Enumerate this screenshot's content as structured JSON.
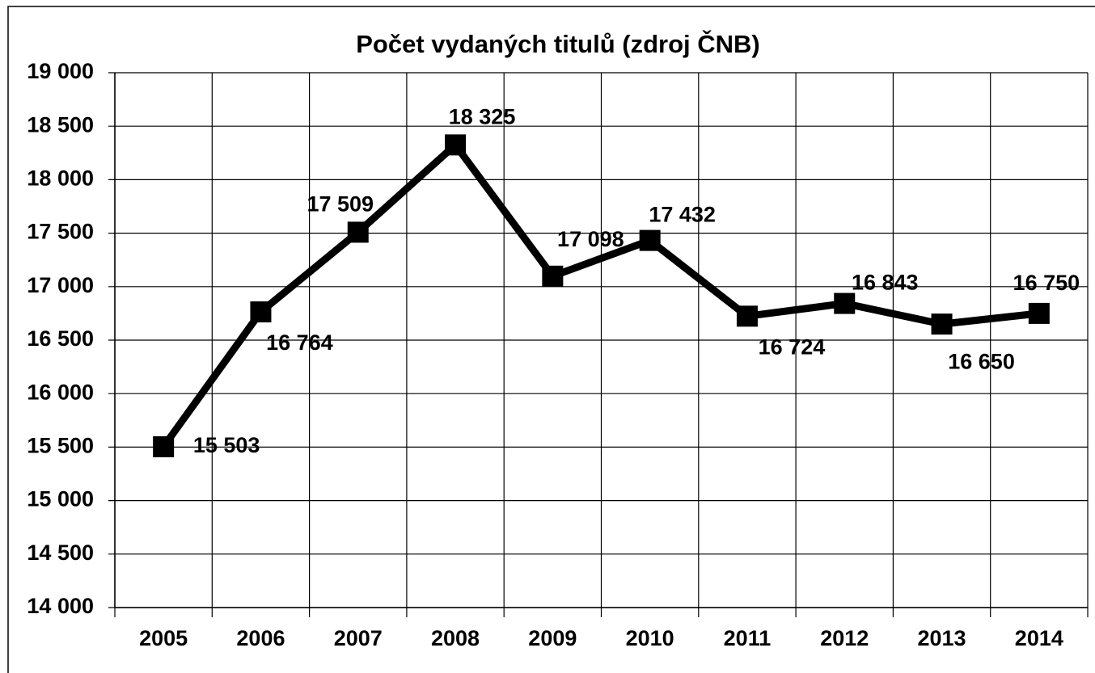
{
  "chart_data": {
    "type": "line",
    "title": "Počet vydaných titulů (zdroj ČNB)",
    "categories": [
      "2005",
      "2006",
      "2007",
      "2008",
      "2009",
      "2010",
      "2011",
      "2012",
      "2013",
      "2014"
    ],
    "values": [
      15503,
      16764,
      17509,
      18325,
      17098,
      17432,
      16724,
      16843,
      16650,
      16750
    ],
    "value_labels": [
      "15 503",
      "16 764",
      "17 509",
      "18 325",
      "17 098",
      "17 432",
      "16 724",
      "16 843",
      "16 650",
      "16 750"
    ],
    "color": "#000000",
    "ylim": [
      14000,
      19000
    ],
    "yticks": [
      {
        "value": 14000,
        "label": "14 000"
      },
      {
        "value": 14500,
        "label": "14 500"
      },
      {
        "value": 15000,
        "label": "15 000"
      },
      {
        "value": 15500,
        "label": "15 500"
      },
      {
        "value": 16000,
        "label": "16 000"
      },
      {
        "value": 16500,
        "label": "16 500"
      },
      {
        "value": 17000,
        "label": "17 000"
      },
      {
        "value": 17500,
        "label": "17 500"
      },
      {
        "value": 18000,
        "label": "18 000"
      },
      {
        "value": 18500,
        "label": "18 500"
      },
      {
        "value": 19000,
        "label": "19 000"
      }
    ],
    "grid": true
  }
}
